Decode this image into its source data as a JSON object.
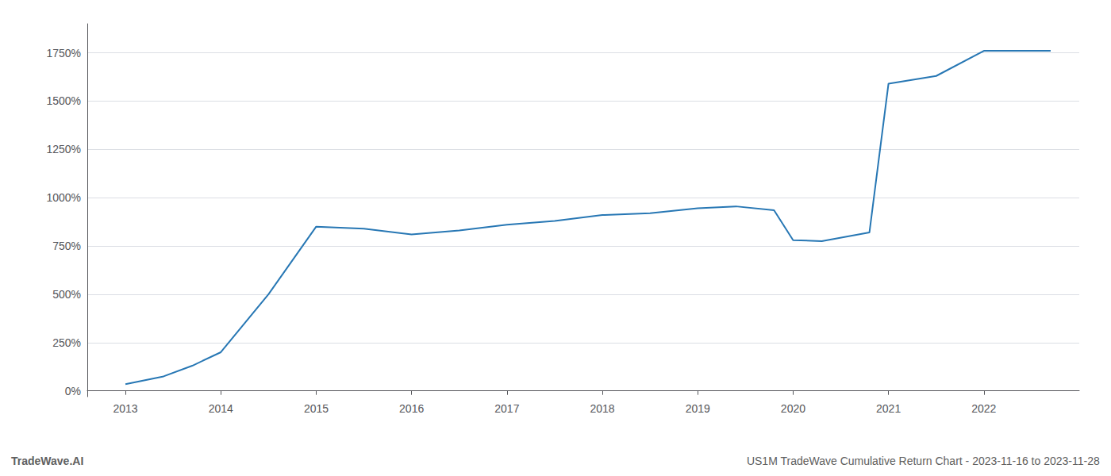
{
  "chart_data": {
    "type": "line",
    "annotations": [
      "TradeWave.AI",
      "US1M TradeWave Cumulative Return Chart - 2023-11-16 to 2023-11-28"
    ],
    "x": [
      2013.0,
      2013.4,
      2013.7,
      2014.0,
      2014.5,
      2015.0,
      2015.5,
      2016.0,
      2016.5,
      2017.0,
      2017.5,
      2018.0,
      2018.5,
      2019.0,
      2019.4,
      2019.8,
      2020.0,
      2020.3,
      2020.8,
      2021.0,
      2021.5,
      2022.0,
      2022.7
    ],
    "values": [
      35,
      75,
      130,
      200,
      500,
      850,
      840,
      810,
      830,
      860,
      880,
      910,
      920,
      945,
      955,
      935,
      780,
      775,
      820,
      1590,
      1630,
      1760,
      1760
    ],
    "color": "#2777b4",
    "xlim": [
      2012.6,
      2023.0
    ],
    "xticks": [
      2013,
      2014,
      2015,
      2016,
      2017,
      2018,
      2019,
      2020,
      2021,
      2022
    ],
    "ylim": [
      -30,
      1900
    ],
    "yticks": [
      {
        "value": 0,
        "label": "0%"
      },
      {
        "value": 250,
        "label": "250%"
      },
      {
        "value": 500,
        "label": "500%"
      },
      {
        "value": 750,
        "label": "750%"
      },
      {
        "value": 1000,
        "label": "1000%"
      },
      {
        "value": 1250,
        "label": "1250%"
      },
      {
        "value": 1500,
        "label": "1500%"
      },
      {
        "value": 1750,
        "label": "1750%"
      }
    ],
    "grid": "y"
  }
}
